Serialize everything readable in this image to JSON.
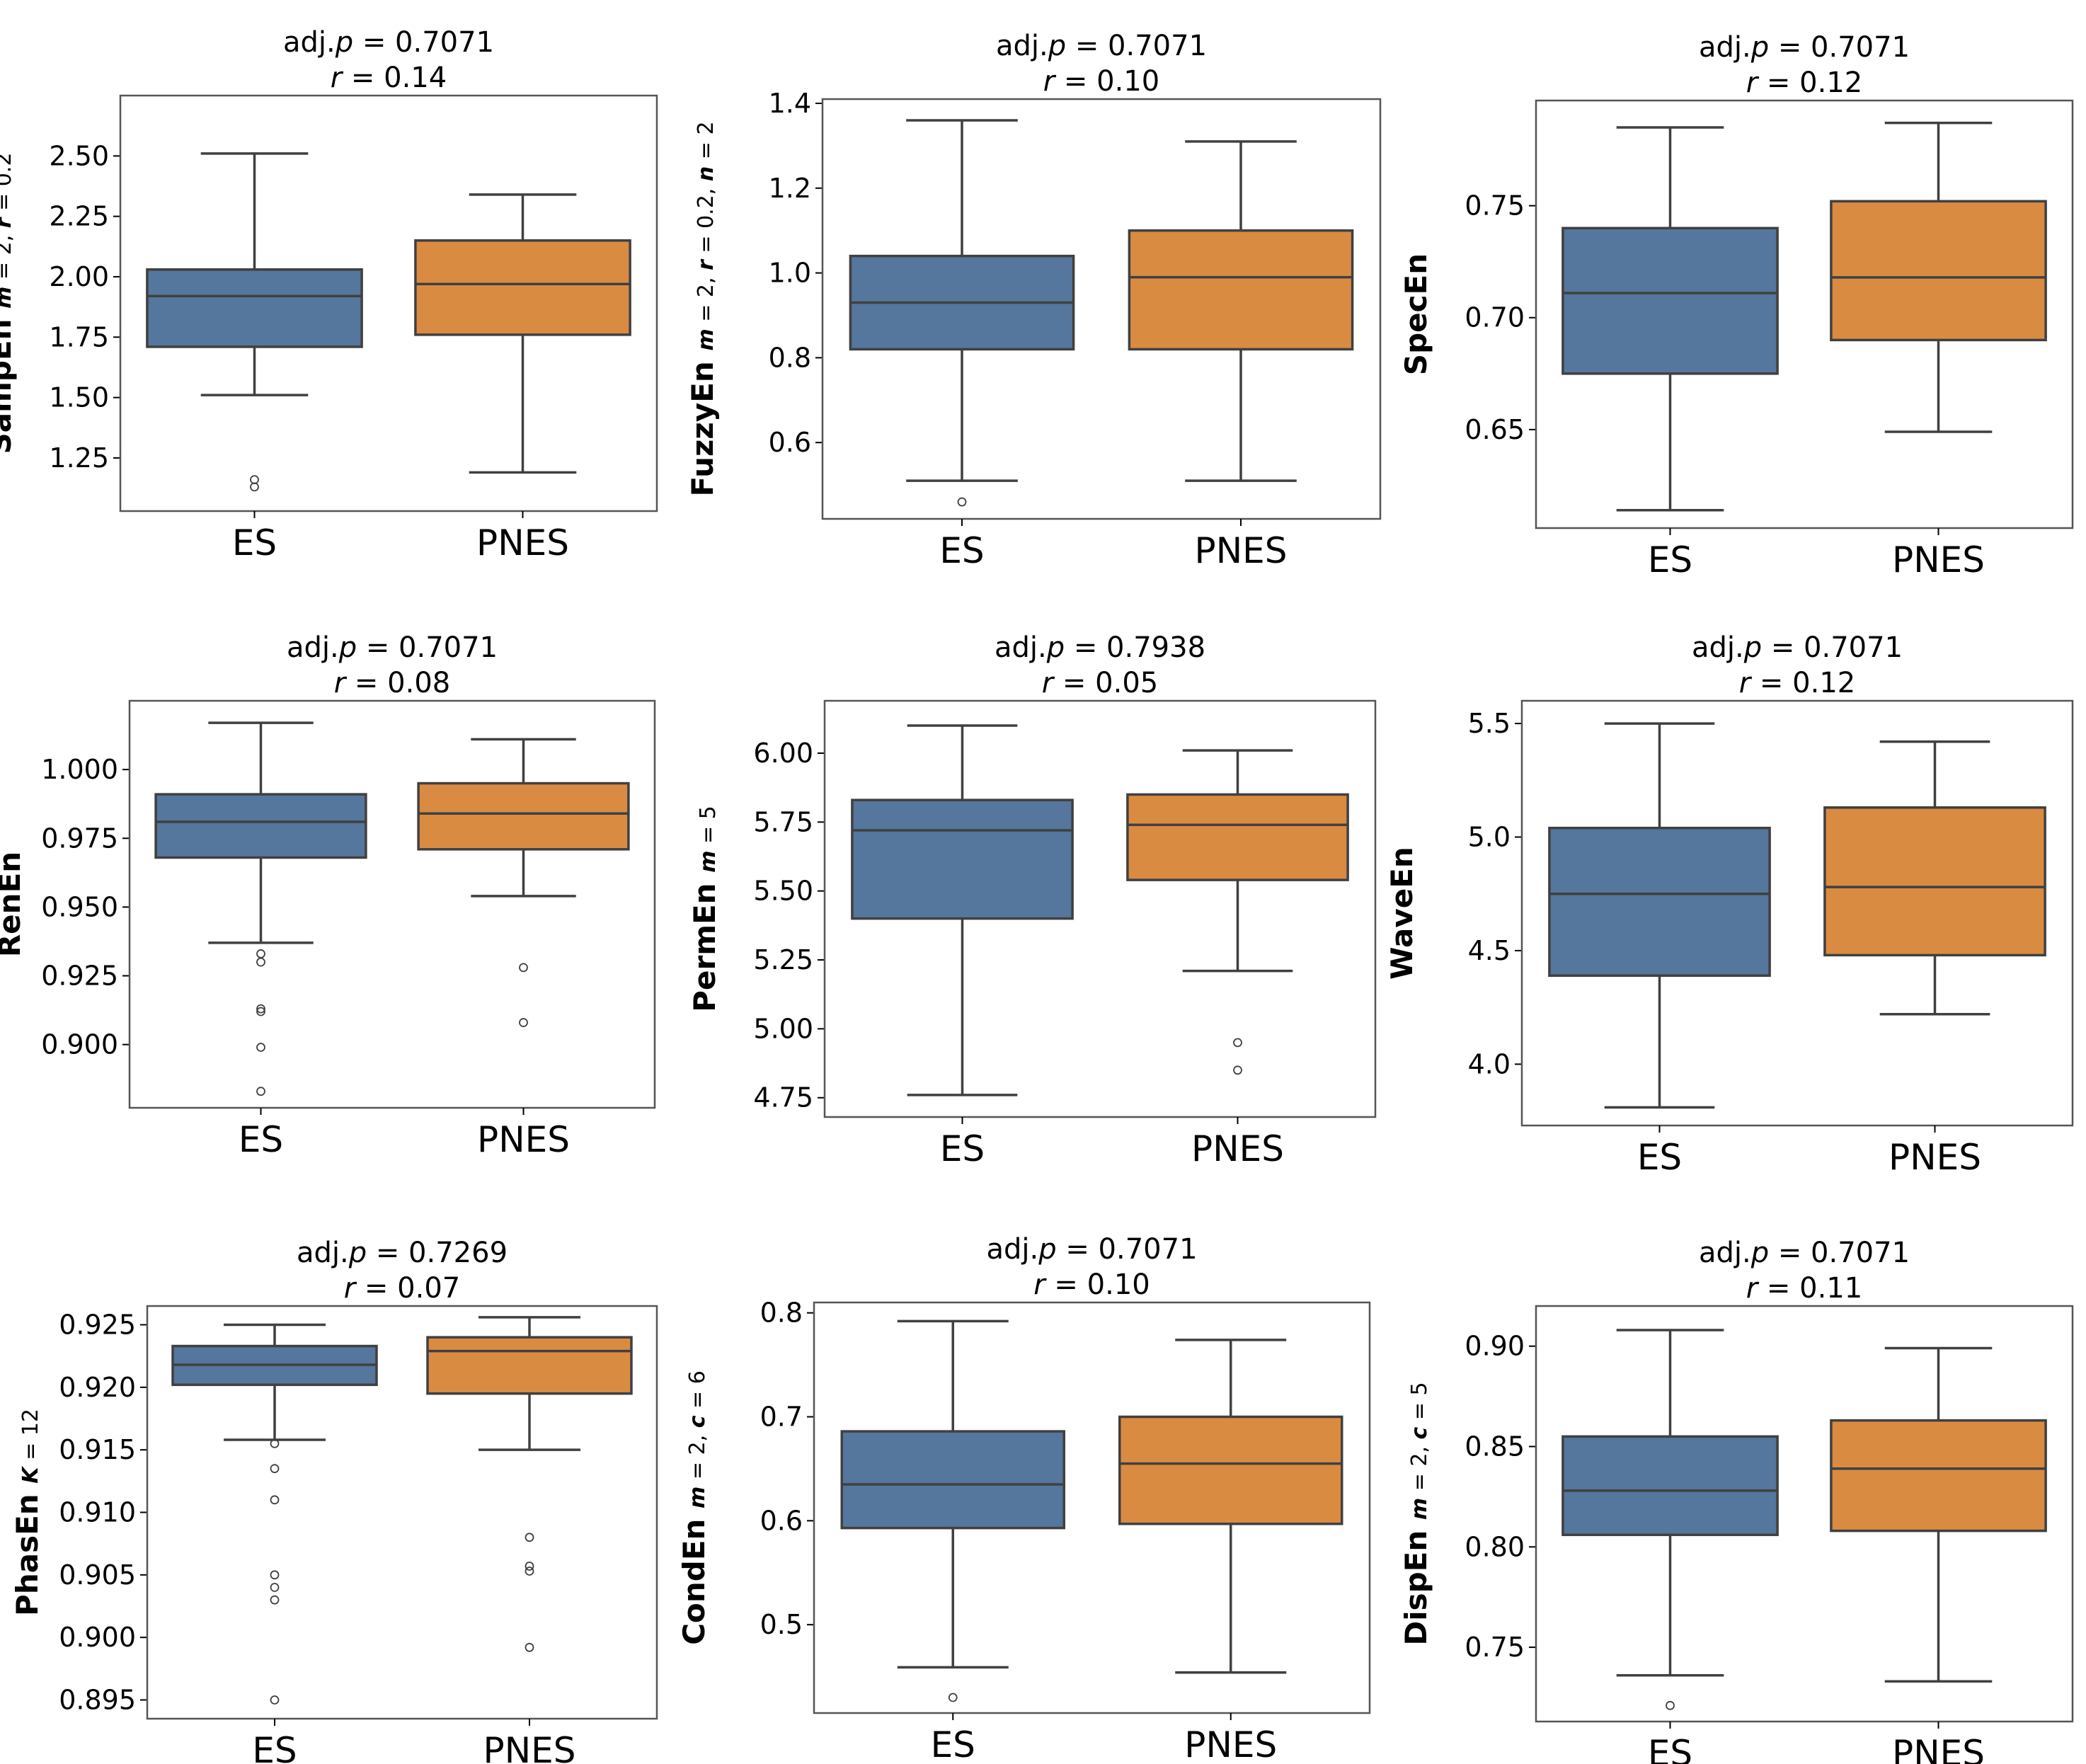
{
  "colors": {
    "ES": "#55769d",
    "PNES": "#da8b42",
    "line": "#404040",
    "frame": "#555555"
  },
  "chart_data": [
    {
      "type": "box",
      "title_p": "0.7071",
      "title_r": "0.14",
      "ylabel": "SampEn",
      "ylabel_sub": [
        {
          "t": "m",
          "i": true
        },
        {
          "t": " = 2, ",
          "i": false
        },
        {
          "t": "r",
          "i": true
        },
        {
          "t": " = 0.2",
          "i": false
        }
      ],
      "ylim": [
        1.03,
        2.75
      ],
      "yticks": [
        "1.25",
        "1.50",
        "1.75",
        "2.00",
        "2.25",
        "2.50"
      ],
      "categories": [
        "ES",
        "PNES"
      ],
      "boxes": [
        {
          "name": "ES",
          "whislo": 1.51,
          "q1": 1.71,
          "med": 1.92,
          "q3": 2.03,
          "whishi": 2.51,
          "fliers": [
            1.16,
            1.13
          ]
        },
        {
          "name": "PNES",
          "whislo": 1.19,
          "q1": 1.76,
          "med": 1.97,
          "q3": 2.15,
          "whishi": 2.34,
          "fliers": []
        }
      ]
    },
    {
      "type": "box",
      "title_p": "0.7071",
      "title_r": "0.10",
      "ylabel": "FuzzyEn",
      "ylabel_sub": [
        {
          "t": "m",
          "i": true
        },
        {
          "t": " = 2, ",
          "i": false
        },
        {
          "t": "r",
          "i": true
        },
        {
          "t": " = 0.2, ",
          "i": false
        },
        {
          "t": "n",
          "i": true
        },
        {
          "t": " = 2",
          "i": false
        }
      ],
      "ylim": [
        0.42,
        1.41
      ],
      "yticks": [
        "0.6",
        "0.8",
        "1.0",
        "1.2",
        "1.4"
      ],
      "categories": [
        "ES",
        "PNES"
      ],
      "boxes": [
        {
          "name": "ES",
          "whislo": 0.51,
          "q1": 0.82,
          "med": 0.93,
          "q3": 1.04,
          "whishi": 1.36,
          "fliers": [
            0.46
          ]
        },
        {
          "name": "PNES",
          "whislo": 0.51,
          "q1": 0.82,
          "med": 0.99,
          "q3": 1.1,
          "whishi": 1.31,
          "fliers": []
        }
      ]
    },
    {
      "type": "box",
      "title_p": "0.7071",
      "title_r": "0.12",
      "ylabel": "SpecEn",
      "ylabel_sub": [],
      "ylim": [
        0.606,
        0.797
      ],
      "yticks": [
        "0.65",
        "0.70",
        "0.75"
      ],
      "categories": [
        "ES",
        "PNES"
      ],
      "boxes": [
        {
          "name": "ES",
          "whislo": 0.614,
          "q1": 0.675,
          "med": 0.711,
          "q3": 0.74,
          "whishi": 0.785,
          "fliers": []
        },
        {
          "name": "PNES",
          "whislo": 0.649,
          "q1": 0.69,
          "med": 0.718,
          "q3": 0.752,
          "whishi": 0.787,
          "fliers": []
        }
      ]
    },
    {
      "type": "box",
      "title_p": "0.7071",
      "title_r": "0.08",
      "ylabel": "RenEn",
      "ylabel_sub": [],
      "ylim": [
        0.877,
        1.025
      ],
      "yticks": [
        "0.900",
        "0.925",
        "0.950",
        "0.975",
        "1.000"
      ],
      "categories": [
        "ES",
        "PNES"
      ],
      "boxes": [
        {
          "name": "ES",
          "whislo": 0.937,
          "q1": 0.968,
          "med": 0.981,
          "q3": 0.991,
          "whishi": 1.017,
          "fliers": [
            0.933,
            0.93,
            0.913,
            0.912,
            0.899,
            0.883
          ]
        },
        {
          "name": "PNES",
          "whislo": 0.954,
          "q1": 0.971,
          "med": 0.984,
          "q3": 0.995,
          "whishi": 1.011,
          "fliers": [
            0.928,
            0.908
          ]
        }
      ]
    },
    {
      "type": "box",
      "title_p": "0.7938",
      "title_r": "0.05",
      "ylabel": "PermEn",
      "ylabel_sub": [
        {
          "t": "m",
          "i": true
        },
        {
          "t": " = 5",
          "i": false
        }
      ],
      "ylim": [
        4.68,
        6.19
      ],
      "yticks": [
        "4.75",
        "5.00",
        "5.25",
        "5.50",
        "5.75",
        "6.00"
      ],
      "categories": [
        "ES",
        "PNES"
      ],
      "boxes": [
        {
          "name": "ES",
          "whislo": 4.76,
          "q1": 5.4,
          "med": 5.72,
          "q3": 5.83,
          "whishi": 6.1,
          "fliers": []
        },
        {
          "name": "PNES",
          "whislo": 5.21,
          "q1": 5.54,
          "med": 5.74,
          "q3": 5.85,
          "whishi": 6.01,
          "fliers": [
            4.95,
            4.85
          ]
        }
      ]
    },
    {
      "type": "box",
      "title_p": "0.7071",
      "title_r": "0.12",
      "ylabel": "WaveEn",
      "ylabel_sub": [],
      "ylim": [
        3.73,
        5.6
      ],
      "yticks": [
        "4.0",
        "4.5",
        "5.0",
        "5.5"
      ],
      "categories": [
        "ES",
        "PNES"
      ],
      "boxes": [
        {
          "name": "ES",
          "whislo": 3.81,
          "q1": 4.39,
          "med": 4.75,
          "q3": 5.04,
          "whishi": 5.5,
          "fliers": []
        },
        {
          "name": "PNES",
          "whislo": 4.22,
          "q1": 4.48,
          "med": 4.78,
          "q3": 5.13,
          "whishi": 5.42,
          "fliers": []
        }
      ]
    },
    {
      "type": "box",
      "title_p": "0.7269",
      "title_r": "0.07",
      "ylabel": "PhasEn",
      "ylabel_sub": [
        {
          "t": "K",
          "i": true
        },
        {
          "t": " = 12",
          "i": false
        }
      ],
      "ylim": [
        0.8935,
        0.9265
      ],
      "yticks": [
        "0.895",
        "0.900",
        "0.905",
        "0.910",
        "0.915",
        "0.920",
        "0.925"
      ],
      "categories": [
        "ES",
        "PNES"
      ],
      "boxes": [
        {
          "name": "ES",
          "whislo": 0.9158,
          "q1": 0.9202,
          "med": 0.9218,
          "q3": 0.9233,
          "whishi": 0.925,
          "fliers": [
            0.9155,
            0.9135,
            0.911,
            0.905,
            0.904,
            0.903,
            0.895
          ]
        },
        {
          "name": "PNES",
          "whislo": 0.915,
          "q1": 0.9195,
          "med": 0.9229,
          "q3": 0.924,
          "whishi": 0.9256,
          "fliers": [
            0.908,
            0.9057,
            0.9053,
            0.8992
          ]
        }
      ]
    },
    {
      "type": "box",
      "title_p": "0.7071",
      "title_r": "0.10",
      "ylabel": "CondEn",
      "ylabel_sub": [
        {
          "t": "m",
          "i": true
        },
        {
          "t": " = 2, ",
          "i": false
        },
        {
          "t": "c",
          "i": true
        },
        {
          "t": " = 6",
          "i": false
        }
      ],
      "ylim": [
        0.415,
        0.81
      ],
      "yticks": [
        "0.5",
        "0.6",
        "0.7",
        "0.8"
      ],
      "categories": [
        "ES",
        "PNES"
      ],
      "boxes": [
        {
          "name": "ES",
          "whislo": 0.459,
          "q1": 0.593,
          "med": 0.635,
          "q3": 0.686,
          "whishi": 0.792,
          "fliers": [
            0.43
          ]
        },
        {
          "name": "PNES",
          "whislo": 0.454,
          "q1": 0.597,
          "med": 0.655,
          "q3": 0.7,
          "whishi": 0.774,
          "fliers": []
        }
      ]
    },
    {
      "type": "box",
      "title_p": "0.7071",
      "title_r": "0.11",
      "ylabel": "DispEn",
      "ylabel_sub": [
        {
          "t": "m",
          "i": true
        },
        {
          "t": " = 2, ",
          "i": false
        },
        {
          "t": "c",
          "i": true
        },
        {
          "t": " = 5",
          "i": false
        }
      ],
      "ylim": [
        0.713,
        0.92
      ],
      "yticks": [
        "0.75",
        "0.80",
        "0.85",
        "0.90"
      ],
      "categories": [
        "ES",
        "PNES"
      ],
      "boxes": [
        {
          "name": "ES",
          "whislo": 0.736,
          "q1": 0.806,
          "med": 0.828,
          "q3": 0.855,
          "whishi": 0.908,
          "fliers": [
            0.721
          ]
        },
        {
          "name": "PNES",
          "whislo": 0.733,
          "q1": 0.808,
          "med": 0.839,
          "q3": 0.863,
          "whishi": 0.899,
          "fliers": []
        }
      ]
    }
  ]
}
